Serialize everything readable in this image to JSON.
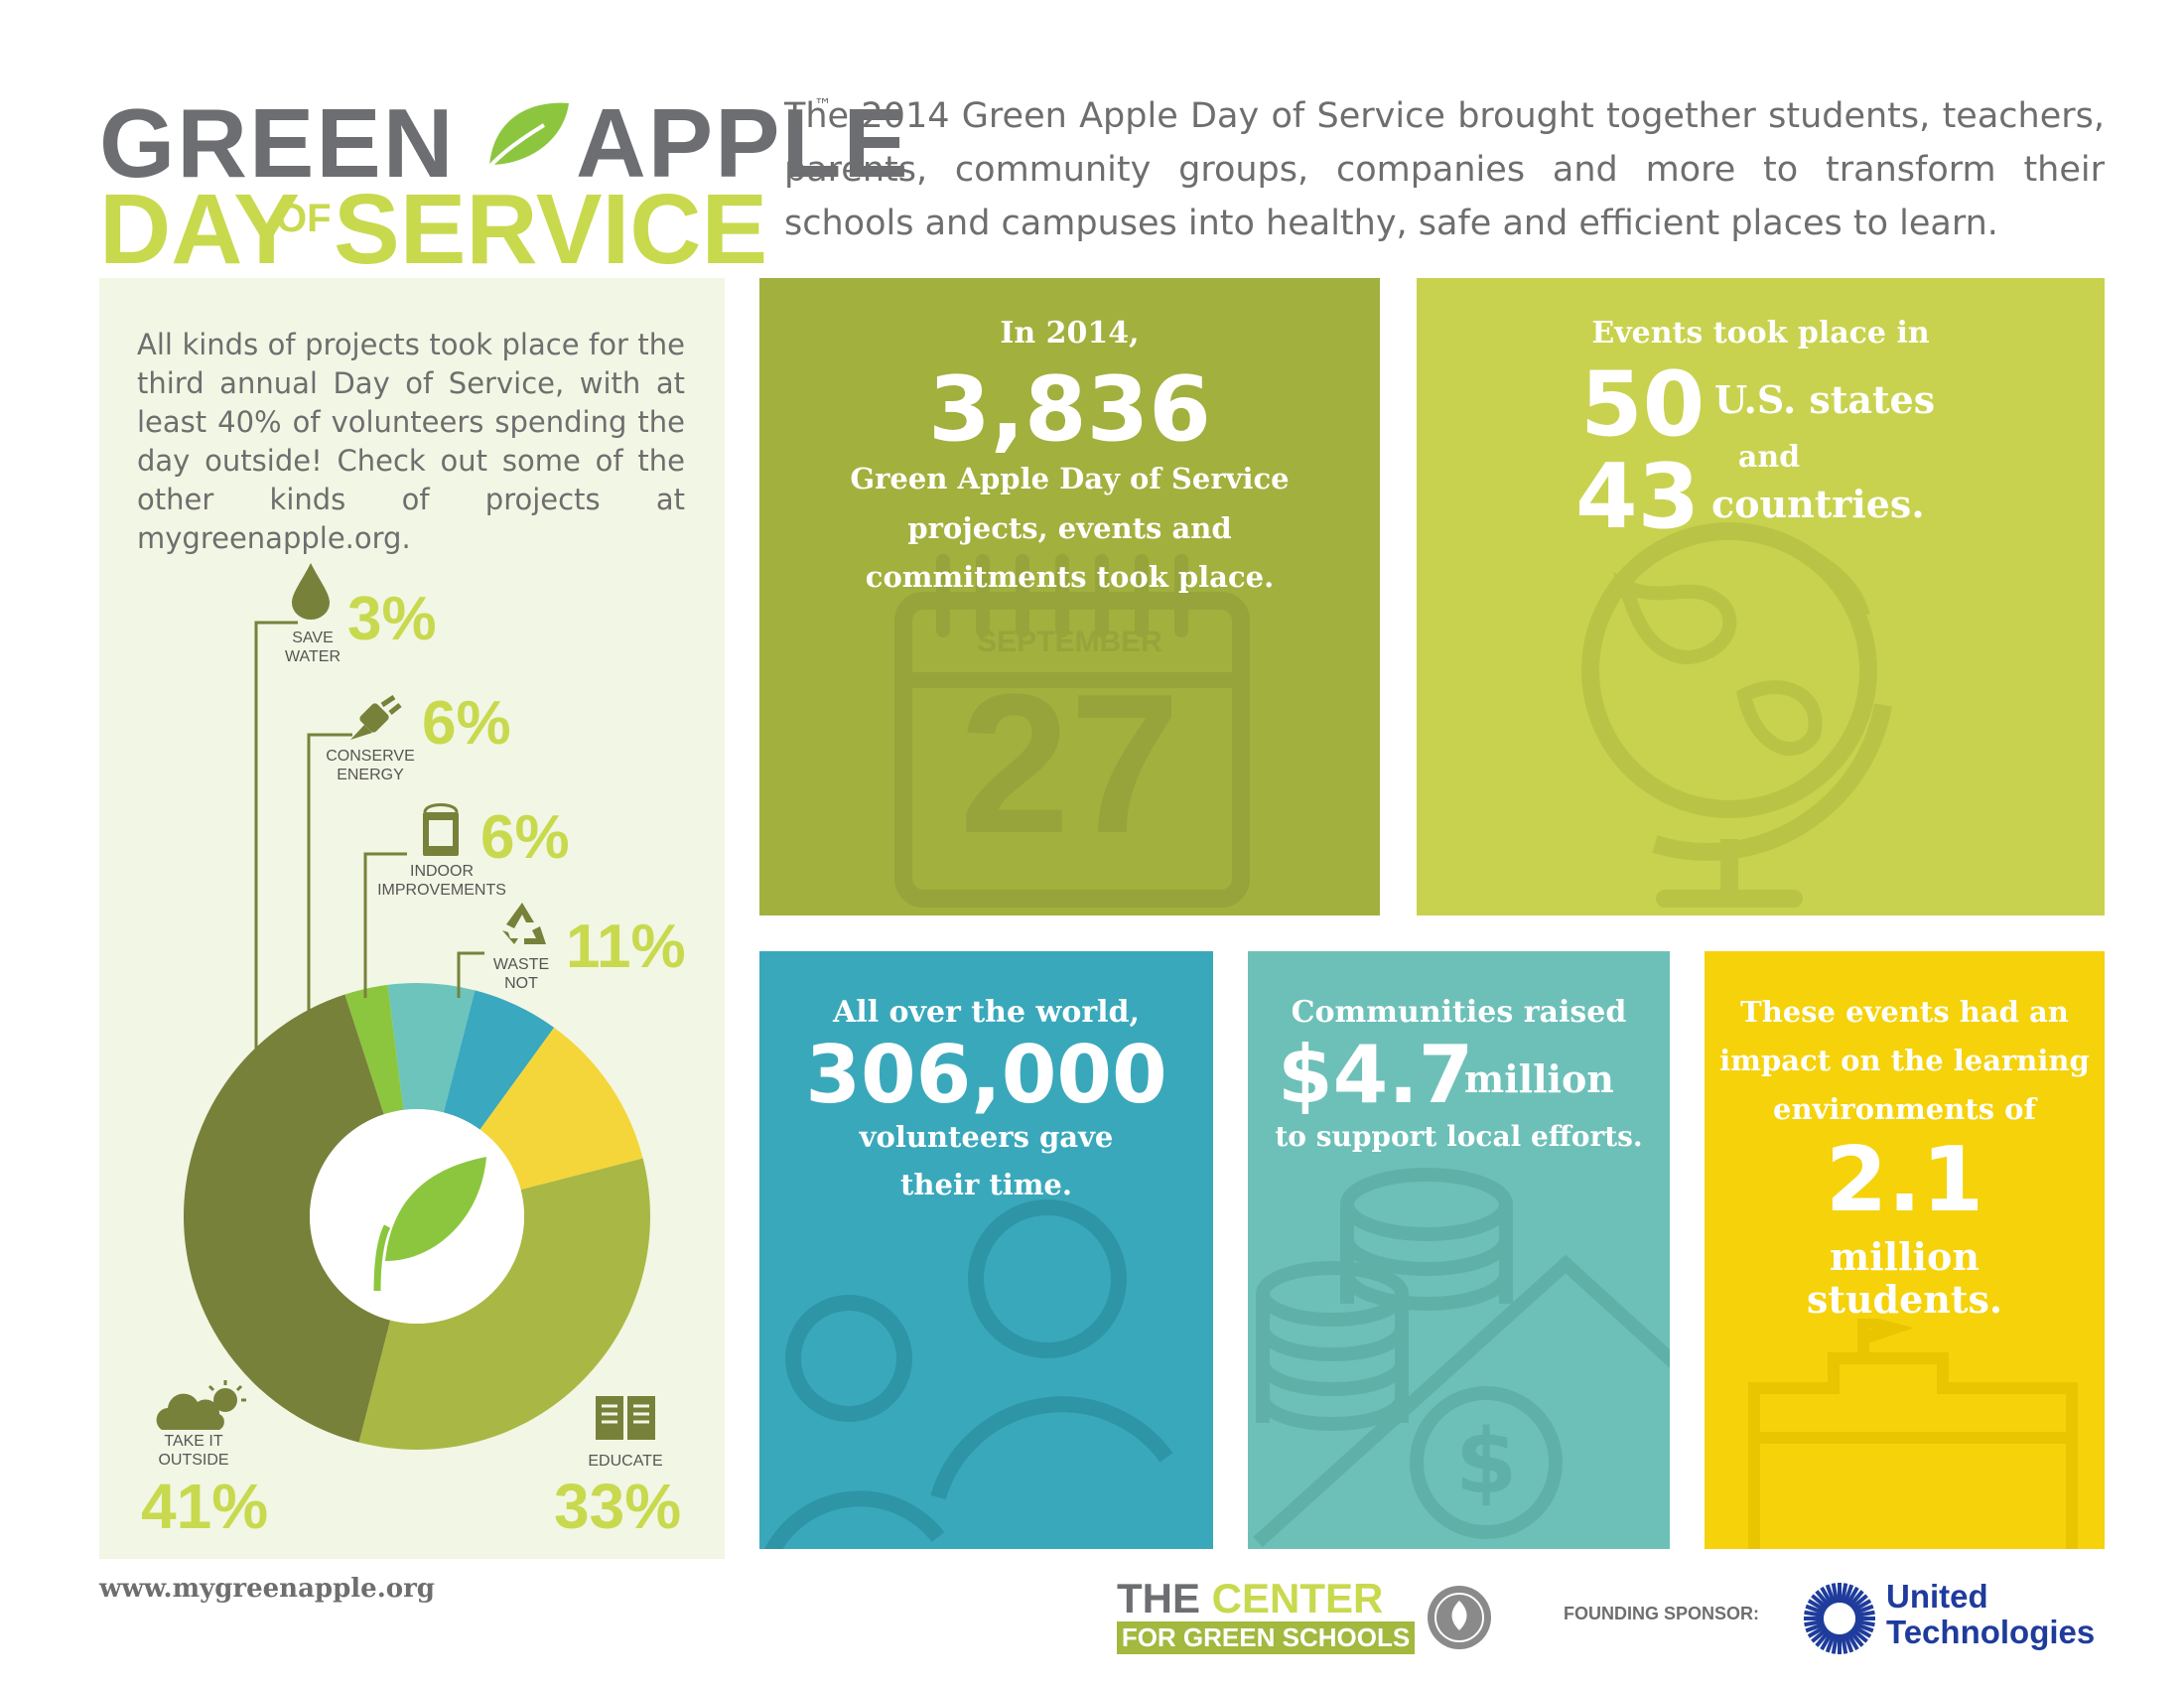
{
  "logo": {
    "word1": "GREEN",
    "word2": "APPLE",
    "tm": "™",
    "day": "DAY",
    "of": "OF",
    "service": "SERVICE"
  },
  "intro": "The 2014 Green Apple Day of Service brought together students, teachers, parents, community groups, companies and more to transform their schools and campuses into healthy, safe and efficient places to learn.",
  "left_text": "All kinds of projects took place for the third annual Day of Service, with at least 40% of volunteers spending the day outside! Check out some of the other kinds of projects at mygreenapple.org.",
  "chart_data": {
    "type": "pie",
    "categories": [
      "SAVE WATER",
      "CONSERVE ENERGY",
      "INDOOR IMPROVEMENTS",
      "WASTE NOT",
      "EDUCATE",
      "TAKE IT OUTSIDE"
    ],
    "values": [
      3,
      6,
      6,
      11,
      33,
      41
    ],
    "labels": [
      "3%",
      "6%",
      "6%",
      "11%",
      "33%",
      "41%"
    ],
    "colors": [
      "#8cc63f",
      "#6cc4bc",
      "#3aa8bf",
      "#f4d63b",
      "#a9b845",
      "#77813a"
    ]
  },
  "cat_labels": {
    "water1": "SAVE",
    "water2": "WATER",
    "energy1": "CONSERVE",
    "energy2": "ENERGY",
    "indoor1": "INDOOR",
    "indoor2": "IMPROVEMENTS",
    "waste1": "WASTE",
    "waste2": "NOT",
    "educate": "EDUCATE",
    "outside1": "TAKE IT",
    "outside2": "OUTSIDE"
  },
  "box1": {
    "line1": "In 2014,",
    "big": "3,836",
    "line2": "Green Apple Day of Service",
    "line3": "projects, events and",
    "line4": "commitments took place.",
    "cal_month": "SEPTEMBER",
    "cal_day": "27",
    "color": "#a2b03e"
  },
  "box2": {
    "line1": "Events took place in",
    "num1": "50",
    "lbl1": "U.S. states",
    "and": "and",
    "num2": "43",
    "lbl2": "countries.",
    "color": "#c8d24e"
  },
  "box3": {
    "line1": "All over the world,",
    "big": "306,000",
    "line2": "volunteers gave",
    "line3": "their time.",
    "color": "#3aa8bb"
  },
  "box4": {
    "line1": "Communities raised",
    "big": "$4.7",
    "unit": "million",
    "line2": "to support local efforts.",
    "color": "#6dc0b8"
  },
  "box5": {
    "line1": "These events had an",
    "line2": "impact on the learning",
    "line3": "environments of",
    "big": "2.1",
    "line4": "million",
    "line5": "students.",
    "color": "#f5d20a"
  },
  "footer": {
    "url": "www.mygreenapple.org",
    "center1": "THE CENTER",
    "center_the": "THE",
    "center_word": "CENTER",
    "center2": "FOR GREEN SCHOOLS",
    "sponsor_label": "FOUNDING SPONSOR:",
    "ut1": "United",
    "ut2": "Technologies"
  }
}
